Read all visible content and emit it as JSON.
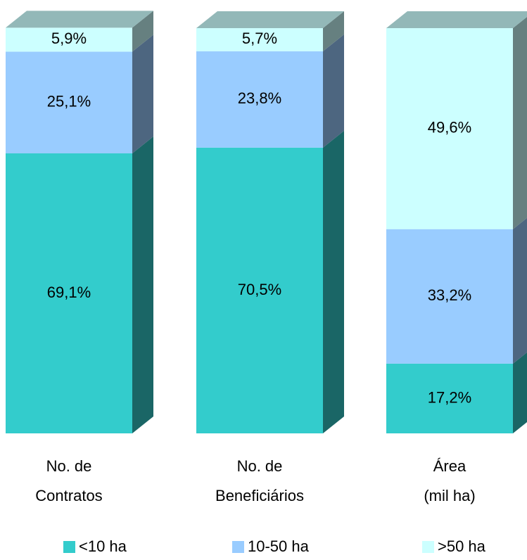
{
  "chart_data": {
    "type": "stacked_bar_3d",
    "categories": [
      [
        "No. de",
        "Contratos"
      ],
      [
        "No. de",
        "Beneficiários"
      ],
      [
        "Área",
        "(mil ha)"
      ]
    ],
    "series": [
      {
        "name": "<10 ha",
        "color": "#33cccc",
        "values": [
          69.1,
          70.5,
          17.2
        ],
        "value_labels": [
          "69,1%",
          "70,5%",
          "17,2%"
        ]
      },
      {
        "name": "10-50 ha",
        "color": "#99ccff",
        "values": [
          25.1,
          23.8,
          33.2
        ],
        "value_labels": [
          "25,1%",
          "23,8%",
          "33,2%"
        ]
      },
      {
        "name": ">50 ha",
        "color": "#ccffff",
        "values": [
          5.9,
          5.7,
          49.6
        ],
        "value_labels": [
          "5,9%",
          "5,7%",
          "49,6%"
        ]
      }
    ],
    "ylim": [
      0,
      100
    ]
  }
}
